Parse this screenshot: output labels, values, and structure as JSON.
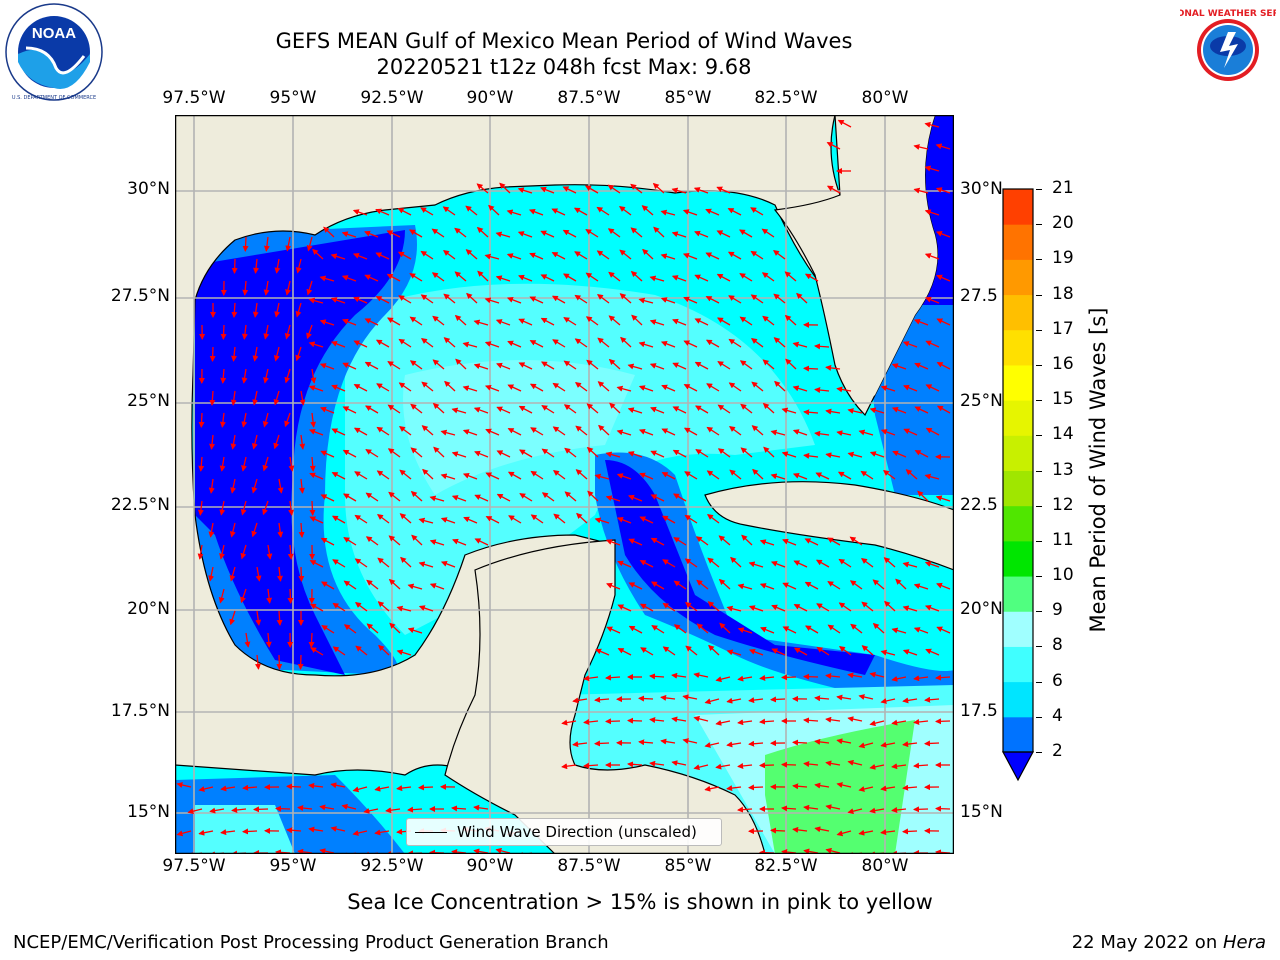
{
  "header": {
    "title_line1": "GEFS MEAN Gulf of Mexico Mean Period of Wind Waves",
    "title_line2": "20220521 t12z 048h fcst   Max: 9.68"
  },
  "logos": {
    "noaa_text": "NOAA",
    "noaa_ring_top": "NATIONAL OCEANIC AND ATMOSPHERIC ADMINISTRATION",
    "noaa_ring_bottom": "U.S. DEPARTMENT OF COMMERCE",
    "nws_ring": "NATIONAL WEATHER SERVICE"
  },
  "map": {
    "lon_ticks": [
      "97.5°W",
      "95°W",
      "92.5°W",
      "90°W",
      "87.5°W",
      "85°W",
      "82.5°W",
      "80°W"
    ],
    "lat_ticks_left": [
      "30°N",
      "27.5°N",
      "25°N",
      "22.5°N",
      "20°N",
      "17.5°N",
      "15°N"
    ],
    "lat_ticks_right": [
      "30°N",
      "27.5",
      "25°N",
      "22.5",
      "20°N",
      "17.5",
      "15°N"
    ],
    "lon_range": [
      -98,
      -78.3
    ],
    "lat_range": [
      14,
      32
    ],
    "grid": true,
    "colors": {
      "land": "#eeecdc",
      "shallow_blue": "#0000ff",
      "mid_blue": "#0080ff",
      "cyan": "#00ffff",
      "light_cyan": "#54ffff",
      "pale_cyan": "#a0ffff",
      "green": "#54ff70",
      "arrow": "#ff0000"
    },
    "legend": {
      "label": "Wind Wave Direction (unscaled)"
    }
  },
  "colorbar": {
    "label": "Mean Period of Wind Waves [s]",
    "levels": [
      "2",
      "4",
      "6",
      "8",
      "9",
      "10",
      "11",
      "12",
      "13",
      "14",
      "15",
      "16",
      "17",
      "18",
      "19",
      "20",
      "21"
    ],
    "colors": [
      "#0073ff",
      "#00e5ff",
      "#40ffff",
      "#a0ffff",
      "#50ff80",
      "#00e600",
      "#50e600",
      "#a0e600",
      "#c8f000",
      "#e6f500",
      "#ffff00",
      "#ffe000",
      "#ffbf00",
      "#ff9900",
      "#ff7300",
      "#ff4000"
    ],
    "extend_color": "#0000ff"
  },
  "subtitle": "Sea Ice Concentration > 15% is shown in pink to yellow",
  "footer": {
    "left": "NCEP/EMC/Verification Post Processing Product Generation Branch",
    "right_date": "22 May 2022 on ",
    "right_host": "Hera"
  }
}
